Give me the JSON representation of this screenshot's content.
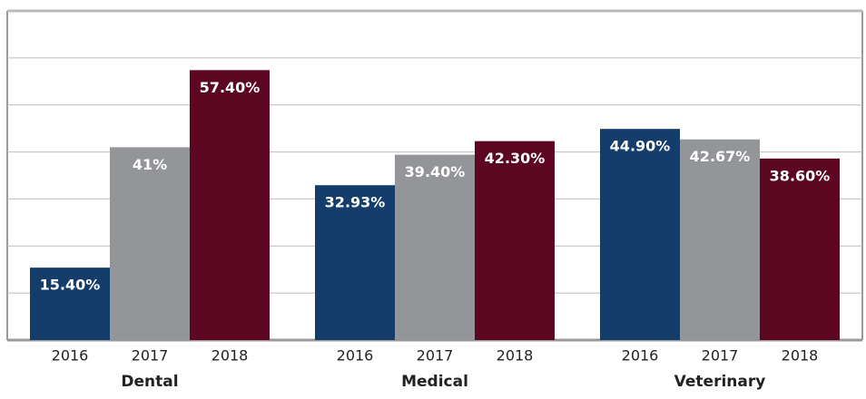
{
  "chart_data": {
    "type": "bar",
    "categories": [
      "Dental",
      "Medical",
      "Veterinary"
    ],
    "series": [
      {
        "name": "2016",
        "color": "#143d6b",
        "values": [
          15.4,
          32.93,
          44.9
        ],
        "value_labels": [
          "15.40%",
          "32.93%",
          "44.90%"
        ]
      },
      {
        "name": "2017",
        "color": "#939598",
        "values": [
          41,
          39.4,
          42.67
        ],
        "value_labels": [
          "41%",
          "39.40%",
          "42.67%"
        ]
      },
      {
        "name": "2018",
        "color": "#5c0621",
        "values": [
          57.4,
          42.3,
          38.6
        ],
        "value_labels": [
          "57.40%",
          "42.30%",
          "38.60%"
        ]
      }
    ],
    "ylim": [
      0,
      70
    ],
    "yticks": [
      0,
      10,
      20,
      30,
      40,
      50,
      60,
      70
    ],
    "grid": true
  }
}
